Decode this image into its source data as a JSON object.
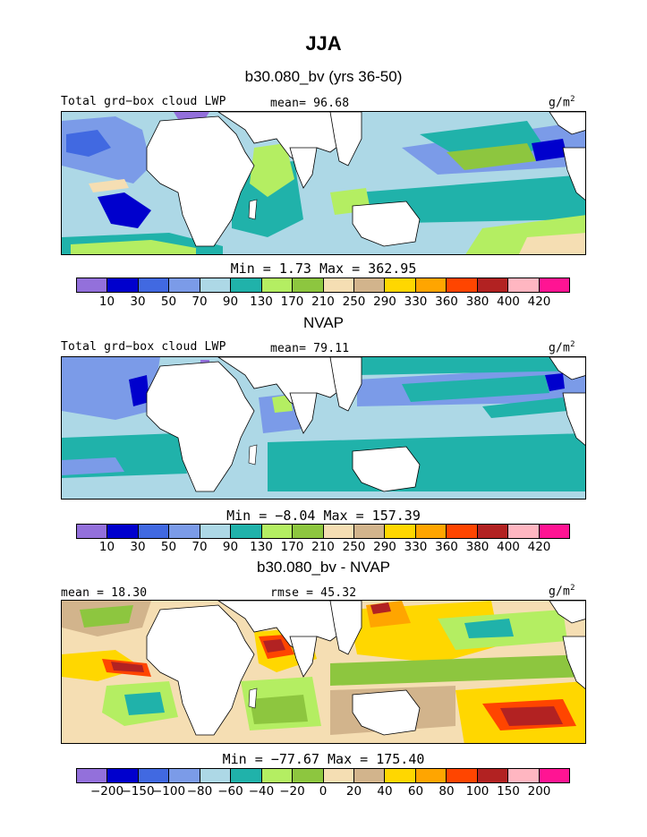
{
  "title": "JJA",
  "colors": {
    "c0": "#9370db",
    "c1": "#0000cd",
    "c2": "#4169e1",
    "c3": "#7b9be8",
    "c4": "#add8e6",
    "c5": "#20b2aa",
    "c6": "#b4ee62",
    "c7": "#8dc63f",
    "c8": "#f5deb3",
    "c9": "#d2b48c",
    "c10": "#ffd700",
    "c11": "#ffa500",
    "c12": "#ff4500",
    "c13": "#b22222",
    "c14": "#ffb6c1",
    "c15": "#ff1493"
  },
  "panels": [
    {
      "subtitle": "b30.080_bv (yrs 36-50)",
      "left_label": "Total grd−box cloud LWP",
      "mid_label": "mean=  96.68",
      "units_prefix": "g/m",
      "units_sup": "2",
      "minmax": "Min =    1.73 Max = 362.95",
      "colorbar_ticks": [
        "10",
        "30",
        "50",
        "70",
        "90",
        "130",
        "170",
        "210",
        "250",
        "290",
        "330",
        "360",
        "380",
        "400",
        "420"
      ]
    },
    {
      "subtitle": "NVAP",
      "left_label": "Total grd−box cloud LWP",
      "mid_label": "mean=  79.11",
      "units_prefix": "g/m",
      "units_sup": "2",
      "minmax": "Min =  −8.04 Max = 157.39",
      "colorbar_ticks": [
        "10",
        "30",
        "50",
        "70",
        "90",
        "130",
        "170",
        "210",
        "250",
        "290",
        "330",
        "360",
        "380",
        "400",
        "420"
      ]
    },
    {
      "subtitle": "b30.080_bv - NVAP",
      "left_label": "mean =  18.30",
      "mid_label": "rmse =  45.32",
      "units_prefix": "g/m",
      "units_sup": "2",
      "minmax": "Min = −77.67 Max = 175.40",
      "colorbar_ticks": [
        "−200",
        "−150",
        "−100",
        "−80",
        "−60",
        "−40",
        "−20",
        "0",
        "20",
        "40",
        "60",
        "80",
        "100",
        "150",
        "200"
      ]
    }
  ],
  "chart_data": [
    {
      "type": "heatmap",
      "title": "b30.080_bv (yrs 36-50)",
      "variable": "Total grd-box cloud LWP",
      "units": "g/m^2",
      "season": "JJA",
      "mean": 96.68,
      "min": 1.73,
      "max": 362.95,
      "levels": [
        10,
        30,
        50,
        70,
        90,
        130,
        170,
        210,
        250,
        290,
        330,
        360,
        380,
        400,
        420
      ]
    },
    {
      "type": "heatmap",
      "title": "NVAP",
      "variable": "Total grd-box cloud LWP",
      "units": "g/m^2",
      "season": "JJA",
      "mean": 79.11,
      "min": -8.04,
      "max": 157.39,
      "levels": [
        10,
        30,
        50,
        70,
        90,
        130,
        170,
        210,
        250,
        290,
        330,
        360,
        380,
        400,
        420
      ]
    },
    {
      "type": "heatmap",
      "title": "b30.080_bv - NVAP",
      "units": "g/m^2",
      "season": "JJA",
      "mean": 18.3,
      "rmse": 45.32,
      "min": -77.67,
      "max": 175.4,
      "levels": [
        -200,
        -150,
        -100,
        -80,
        -60,
        -40,
        -20,
        0,
        20,
        40,
        60,
        80,
        100,
        150,
        200
      ]
    }
  ]
}
